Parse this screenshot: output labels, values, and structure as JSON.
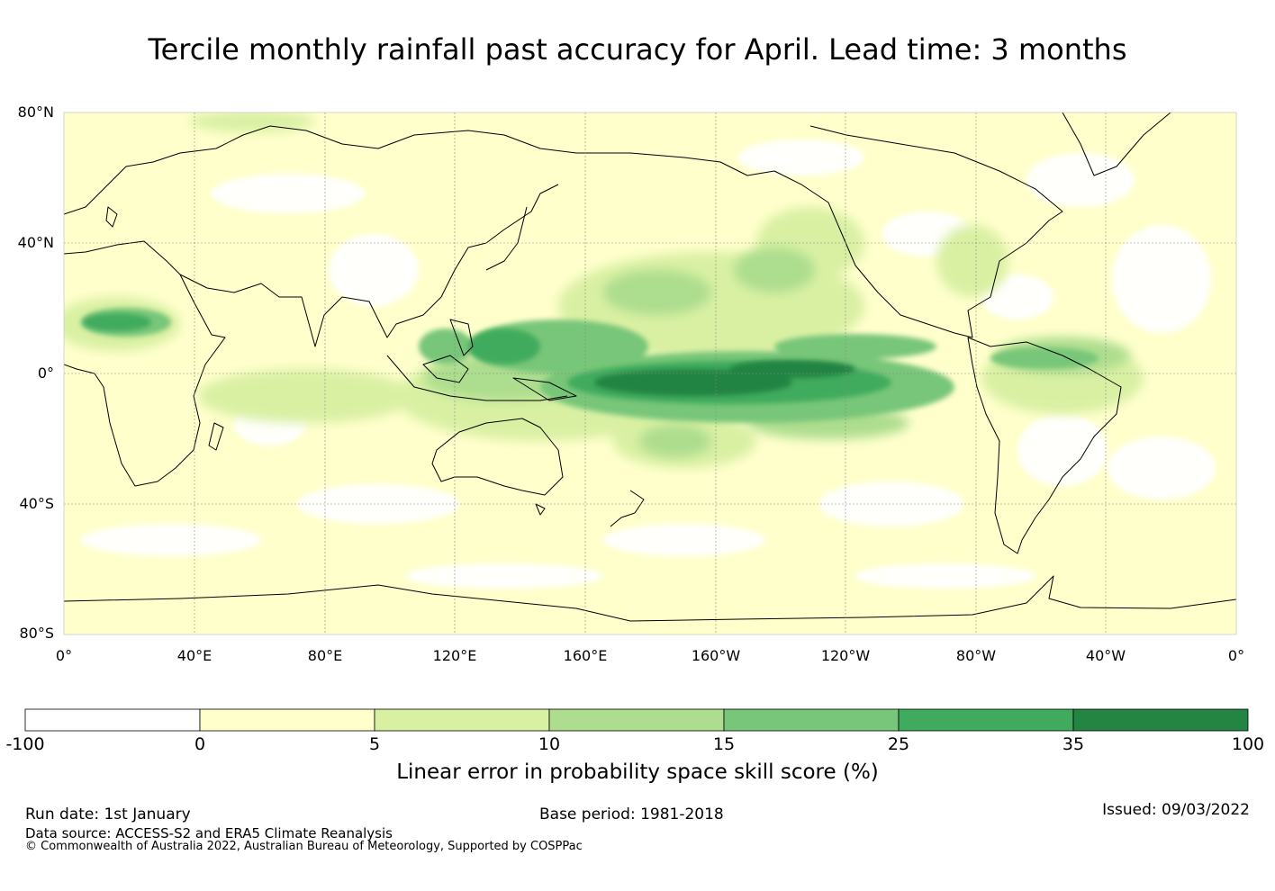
{
  "title": "Tercile monthly rainfall past accuracy for April. Lead time: 3 months",
  "map": {
    "lat_labels": [
      "80°N",
      "40°N",
      "0°",
      "40°S",
      "80°S"
    ],
    "lon_labels": [
      "0°",
      "40°E",
      "80°E",
      "120°E",
      "160°E",
      "160°W",
      "120°W",
      "80°W",
      "40°W",
      "0°"
    ],
    "land_color": "#000000",
    "grid_color": "#888888"
  },
  "colorbar": {
    "bins": [
      {
        "from": "-100",
        "to": "0",
        "color": "#ffffff"
      },
      {
        "from": "0",
        "to": "5",
        "color": "#ffffcc"
      },
      {
        "from": "5",
        "to": "10",
        "color": "#d9f0a3"
      },
      {
        "from": "10",
        "to": "15",
        "color": "#addd8e"
      },
      {
        "from": "15",
        "to": "25",
        "color": "#78c679"
      },
      {
        "from": "25",
        "to": "35",
        "color": "#41ab5d"
      },
      {
        "from": "35",
        "to": "100",
        "color": "#238443"
      }
    ],
    "ticks": [
      "-100",
      "0",
      "5",
      "10",
      "15",
      "25",
      "35",
      "100"
    ],
    "caption": "Linear error in probability space skill score (%)"
  },
  "footer": {
    "run_date": "Run date: 1st January",
    "base_period": "Base period: 1981-2018",
    "issued": "Issued: 09/03/2022",
    "data_source": "Data source: ACCESS-S2 and ERA5 Climate Reanalysis",
    "copyright": "© Commonwealth of Australia 2022, Australian Bureau of Meteorology, Supported by COSPPac"
  }
}
